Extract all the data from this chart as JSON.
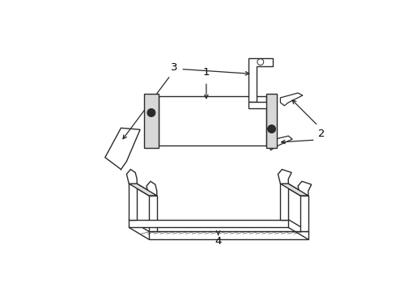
{
  "background_color": "#ffffff",
  "line_color": "#2a2a2a",
  "label_color": "#000000",
  "figure_width": 4.89,
  "figure_height": 3.6,
  "dpi": 100
}
